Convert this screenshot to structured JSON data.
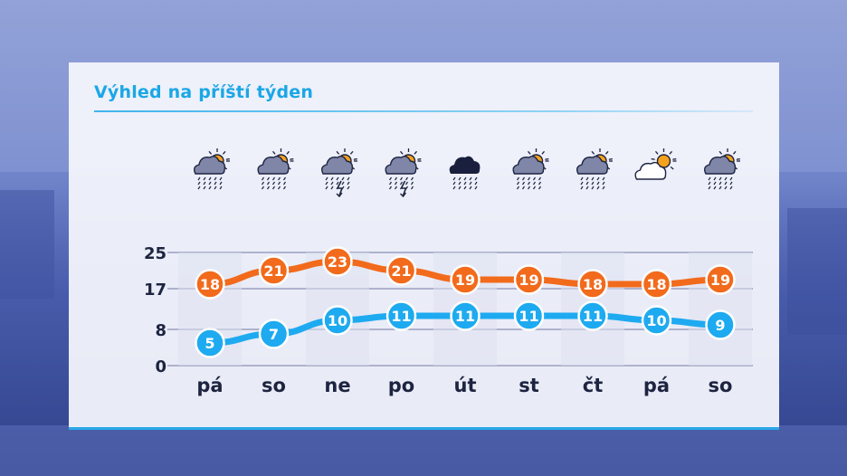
{
  "title": "Výhled na příští týden",
  "colors": {
    "max_series": "#f26a1b",
    "min_series": "#1eaaf0",
    "title": "#1aa7e6",
    "axis_text": "#1d2440"
  },
  "icons": [
    "cloud-sun-rain-icon",
    "cloud-sun-rain-icon",
    "cloud-sun-thunderstorm-icon",
    "cloud-sun-thunderstorm-icon",
    "dark-cloud-rain-icon",
    "cloud-sun-rain-icon",
    "cloud-sun-rain-icon",
    "partly-cloudy-sun-icon",
    "cloud-sun-rain-icon"
  ],
  "chart_data": {
    "type": "line",
    "title": "Výhled na příští týden",
    "categories": [
      "pá",
      "so",
      "ne",
      "po",
      "út",
      "st",
      "čt",
      "pá",
      "so"
    ],
    "series": [
      {
        "values": [
          18,
          21,
          23,
          21,
          19,
          19,
          18,
          18,
          19
        ]
      },
      {
        "values": [
          5,
          7,
          10,
          11,
          11,
          11,
          11,
          10,
          9
        ]
      }
    ],
    "yticks": [
      0,
      8,
      17,
      25
    ],
    "ylim": [
      0,
      25
    ],
    "grid": true,
    "data_labels": true
  }
}
